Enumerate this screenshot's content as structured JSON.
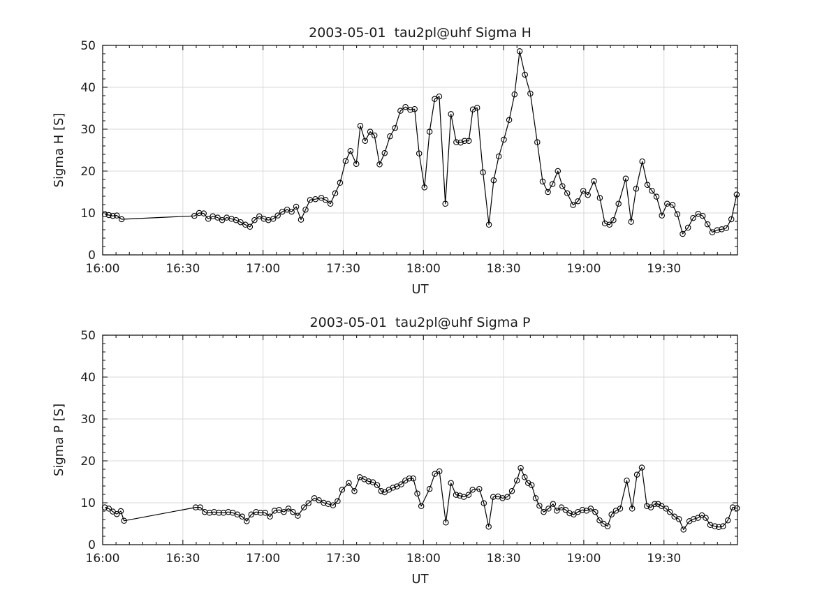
{
  "figure": {
    "background": "#ffffff",
    "axis_color": "#1a1a1a",
    "grid_color": "#d9d9d9",
    "line_color": "#000000",
    "marker": "circle-open",
    "x_axis_label": "UT",
    "x_tick_labels": [
      "16:00",
      "16:30",
      "17:00",
      "17:30",
      "18:00",
      "18:30",
      "19:00",
      "19:30"
    ],
    "y_tick_labels": [
      "0",
      "10",
      "20",
      "30",
      "40",
      "50"
    ]
  },
  "chart_data": [
    {
      "type": "line",
      "title": "2003-05-01  tau2pl@uhf Sigma H",
      "xlabel": "UT",
      "ylabel": "Sigma H [S]",
      "x_unit": "minutes after 16:00 UT",
      "xlim_minutes": [
        0,
        237.5
      ],
      "ylim": [
        0,
        50
      ],
      "x_major_ticks_minutes": [
        0,
        30,
        60,
        90,
        120,
        150,
        180,
        210
      ],
      "x_tick_labels": [
        "16:00",
        "16:30",
        "17:00",
        "17:30",
        "18:00",
        "18:30",
        "19:00",
        "19:30"
      ],
      "x_minor_step_minutes": 5,
      "y_major_ticks": [
        0,
        10,
        20,
        30,
        40,
        50
      ],
      "y_minor_step": 2,
      "grid": true,
      "legend": "none",
      "points": [
        [
          0.8,
          9.7
        ],
        [
          2.3,
          9.5
        ],
        [
          3.8,
          9.3
        ],
        [
          5.3,
          9.4
        ],
        [
          7.1,
          8.5
        ],
        [
          34.3,
          9.3
        ],
        [
          36.1,
          10.0
        ],
        [
          37.8,
          9.9
        ],
        [
          39.5,
          8.6
        ],
        [
          41.2,
          9.2
        ],
        [
          43.0,
          8.9
        ],
        [
          44.7,
          8.3
        ],
        [
          46.4,
          8.9
        ],
        [
          48.2,
          8.6
        ],
        [
          49.9,
          8.3
        ],
        [
          51.6,
          7.8
        ],
        [
          53.4,
          7.2
        ],
        [
          55.1,
          6.7
        ],
        [
          56.8,
          8.3
        ],
        [
          58.6,
          9.2
        ],
        [
          60.3,
          8.6
        ],
        [
          62.0,
          8.3
        ],
        [
          63.8,
          8.6
        ],
        [
          65.5,
          9.4
        ],
        [
          67.2,
          10.3
        ],
        [
          69.0,
          10.8
        ],
        [
          70.7,
          10.3
        ],
        [
          72.4,
          11.5
        ],
        [
          74.2,
          8.4
        ],
        [
          75.9,
          10.8
        ],
        [
          77.6,
          13.1
        ],
        [
          79.6,
          13.3
        ],
        [
          81.8,
          13.6
        ],
        [
          83.4,
          13.1
        ],
        [
          85.2,
          12.2
        ],
        [
          87.0,
          14.7
        ],
        [
          88.8,
          17.2
        ],
        [
          90.9,
          22.4
        ],
        [
          92.7,
          24.8
        ],
        [
          94.9,
          21.7
        ],
        [
          96.4,
          30.8
        ],
        [
          98.2,
          27.2
        ],
        [
          100.1,
          29.4
        ],
        [
          101.7,
          28.5
        ],
        [
          103.6,
          21.6
        ],
        [
          105.5,
          24.3
        ],
        [
          107.5,
          28.3
        ],
        [
          109.4,
          30.3
        ],
        [
          111.4,
          34.4
        ],
        [
          113.3,
          35.3
        ],
        [
          115.1,
          34.6
        ],
        [
          116.7,
          34.8
        ],
        [
          118.4,
          24.2
        ],
        [
          120.4,
          16.1
        ],
        [
          122.3,
          29.4
        ],
        [
          124.2,
          37.2
        ],
        [
          125.9,
          37.8
        ],
        [
          128.2,
          12.2
        ],
        [
          130.3,
          33.6
        ],
        [
          132.3,
          26.9
        ],
        [
          133.9,
          26.8
        ],
        [
          135.4,
          27.2
        ],
        [
          137.0,
          27.2
        ],
        [
          138.5,
          34.7
        ],
        [
          140.1,
          35.1
        ],
        [
          142.3,
          19.7
        ],
        [
          144.5,
          7.2
        ],
        [
          146.3,
          17.8
        ],
        [
          148.2,
          23.5
        ],
        [
          150.1,
          27.5
        ],
        [
          152.1,
          32.2
        ],
        [
          154.1,
          38.3
        ],
        [
          156.0,
          48.6
        ],
        [
          158.0,
          43.0
        ],
        [
          160.0,
          38.5
        ],
        [
          162.6,
          26.9
        ],
        [
          164.6,
          17.5
        ],
        [
          166.6,
          15.0
        ],
        [
          168.3,
          16.9
        ],
        [
          170.3,
          20.0
        ],
        [
          172.0,
          16.4
        ],
        [
          173.8,
          14.7
        ],
        [
          176.0,
          11.9
        ],
        [
          177.8,
          12.8
        ],
        [
          179.8,
          15.3
        ],
        [
          181.5,
          14.3
        ],
        [
          183.8,
          17.6
        ],
        [
          186.0,
          13.6
        ],
        [
          187.9,
          7.5
        ],
        [
          189.6,
          7.2
        ],
        [
          191.1,
          8.3
        ],
        [
          193.0,
          12.2
        ],
        [
          195.7,
          18.2
        ],
        [
          197.7,
          7.9
        ],
        [
          199.6,
          15.8
        ],
        [
          201.9,
          22.3
        ],
        [
          203.8,
          16.7
        ],
        [
          205.5,
          15.3
        ],
        [
          207.2,
          13.9
        ],
        [
          209.2,
          9.4
        ],
        [
          211.2,
          12.2
        ],
        [
          213.2,
          11.9
        ],
        [
          215.0,
          9.7
        ],
        [
          217.0,
          5.0
        ],
        [
          219.0,
          6.5
        ],
        [
          220.9,
          8.8
        ],
        [
          222.8,
          9.8
        ],
        [
          224.5,
          9.3
        ],
        [
          226.3,
          7.3
        ],
        [
          228.1,
          5.4
        ],
        [
          229.9,
          5.9
        ],
        [
          231.6,
          6.1
        ],
        [
          233.3,
          6.4
        ],
        [
          235.2,
          8.5
        ],
        [
          237.2,
          14.4
        ]
      ]
    },
    {
      "type": "line",
      "title": "2003-05-01  tau2pl@uhf Sigma P",
      "xlabel": "UT",
      "ylabel": "Sigma P [S]",
      "x_unit": "minutes after 16:00 UT",
      "xlim_minutes": [
        0,
        237.5
      ],
      "ylim": [
        0,
        50
      ],
      "x_major_ticks_minutes": [
        0,
        30,
        60,
        90,
        120,
        150,
        180,
        210
      ],
      "x_tick_labels": [
        "16:00",
        "16:30",
        "17:00",
        "17:30",
        "18:00",
        "18:30",
        "19:00",
        "19:30"
      ],
      "x_minor_step_minutes": 5,
      "y_major_ticks": [
        0,
        10,
        20,
        30,
        40,
        50
      ],
      "y_minor_step": 2,
      "grid": true,
      "legend": "none",
      "points": [
        [
          0.8,
          8.9
        ],
        [
          2.3,
          8.6
        ],
        [
          3.8,
          7.9
        ],
        [
          5.3,
          7.3
        ],
        [
          6.8,
          8.0
        ],
        [
          8.0,
          5.7
        ],
        [
          34.8,
          8.9
        ],
        [
          36.5,
          8.9
        ],
        [
          38.2,
          7.8
        ],
        [
          40.0,
          7.6
        ],
        [
          41.7,
          7.8
        ],
        [
          43.5,
          7.6
        ],
        [
          45.2,
          7.6
        ],
        [
          47.0,
          7.8
        ],
        [
          48.7,
          7.6
        ],
        [
          50.4,
          7.2
        ],
        [
          52.2,
          6.7
        ],
        [
          53.9,
          5.6
        ],
        [
          55.6,
          7.2
        ],
        [
          57.4,
          7.8
        ],
        [
          59.1,
          7.6
        ],
        [
          60.8,
          7.6
        ],
        [
          62.6,
          6.7
        ],
        [
          64.3,
          8.1
        ],
        [
          66.0,
          8.3
        ],
        [
          67.8,
          7.8
        ],
        [
          69.5,
          8.6
        ],
        [
          71.2,
          7.8
        ],
        [
          73.0,
          6.9
        ],
        [
          75.3,
          8.9
        ],
        [
          77.0,
          9.9
        ],
        [
          79.2,
          11.1
        ],
        [
          80.9,
          10.6
        ],
        [
          82.7,
          10.0
        ],
        [
          84.4,
          9.7
        ],
        [
          86.2,
          9.4
        ],
        [
          87.9,
          10.4
        ],
        [
          89.6,
          13.1
        ],
        [
          92.1,
          14.7
        ],
        [
          94.2,
          12.8
        ],
        [
          96.2,
          16.1
        ],
        [
          97.9,
          15.6
        ],
        [
          99.5,
          15.1
        ],
        [
          101.1,
          14.9
        ],
        [
          102.7,
          14.2
        ],
        [
          104.2,
          12.8
        ],
        [
          105.5,
          12.5
        ],
        [
          107.1,
          13.1
        ],
        [
          108.6,
          13.6
        ],
        [
          110.1,
          13.9
        ],
        [
          111.7,
          14.4
        ],
        [
          113.2,
          15.3
        ],
        [
          114.7,
          15.8
        ],
        [
          116.2,
          15.8
        ],
        [
          117.7,
          12.2
        ],
        [
          119.2,
          9.2
        ],
        [
          122.3,
          13.3
        ],
        [
          124.3,
          16.9
        ],
        [
          126.0,
          17.5
        ],
        [
          128.4,
          5.3
        ],
        [
          130.3,
          14.7
        ],
        [
          132.2,
          11.9
        ],
        [
          133.6,
          11.7
        ],
        [
          135.1,
          11.4
        ],
        [
          136.9,
          11.9
        ],
        [
          138.4,
          13.1
        ],
        [
          140.9,
          13.3
        ],
        [
          142.6,
          9.9
        ],
        [
          144.4,
          4.3
        ],
        [
          146.1,
          11.4
        ],
        [
          147.9,
          11.5
        ],
        [
          149.6,
          11.1
        ],
        [
          151.4,
          11.4
        ],
        [
          153.1,
          12.8
        ],
        [
          155.0,
          15.3
        ],
        [
          156.4,
          18.3
        ],
        [
          157.9,
          16.1
        ],
        [
          159.2,
          14.7
        ],
        [
          160.5,
          14.2
        ],
        [
          162.0,
          11.1
        ],
        [
          163.4,
          9.3
        ],
        [
          165.0,
          7.8
        ],
        [
          166.8,
          8.6
        ],
        [
          168.5,
          9.7
        ],
        [
          169.9,
          8.1
        ],
        [
          171.6,
          8.9
        ],
        [
          173.2,
          8.3
        ],
        [
          174.7,
          7.5
        ],
        [
          176.2,
          7.2
        ],
        [
          177.8,
          7.8
        ],
        [
          179.5,
          8.3
        ],
        [
          181.0,
          8.1
        ],
        [
          182.6,
          8.6
        ],
        [
          184.3,
          7.8
        ],
        [
          185.9,
          5.8
        ],
        [
          187.4,
          5.0
        ],
        [
          188.9,
          4.4
        ],
        [
          190.4,
          7.2
        ],
        [
          192.0,
          8.1
        ],
        [
          193.6,
          8.6
        ],
        [
          196.1,
          15.3
        ],
        [
          198.1,
          8.6
        ],
        [
          199.9,
          16.7
        ],
        [
          201.7,
          18.4
        ],
        [
          203.6,
          9.2
        ],
        [
          205.1,
          8.9
        ],
        [
          206.5,
          9.7
        ],
        [
          207.8,
          9.7
        ],
        [
          209.1,
          9.2
        ],
        [
          210.8,
          8.6
        ],
        [
          212.2,
          7.8
        ],
        [
          213.9,
          6.7
        ],
        [
          215.6,
          6.1
        ],
        [
          217.3,
          3.6
        ],
        [
          219.5,
          5.6
        ],
        [
          221.1,
          6.1
        ],
        [
          222.7,
          6.4
        ],
        [
          224.2,
          7.0
        ],
        [
          225.6,
          6.4
        ],
        [
          227.3,
          4.7
        ],
        [
          229.0,
          4.4
        ],
        [
          230.5,
          4.2
        ],
        [
          232.1,
          4.4
        ],
        [
          233.9,
          5.8
        ],
        [
          235.7,
          8.9
        ],
        [
          237.3,
          8.7
        ]
      ]
    }
  ]
}
